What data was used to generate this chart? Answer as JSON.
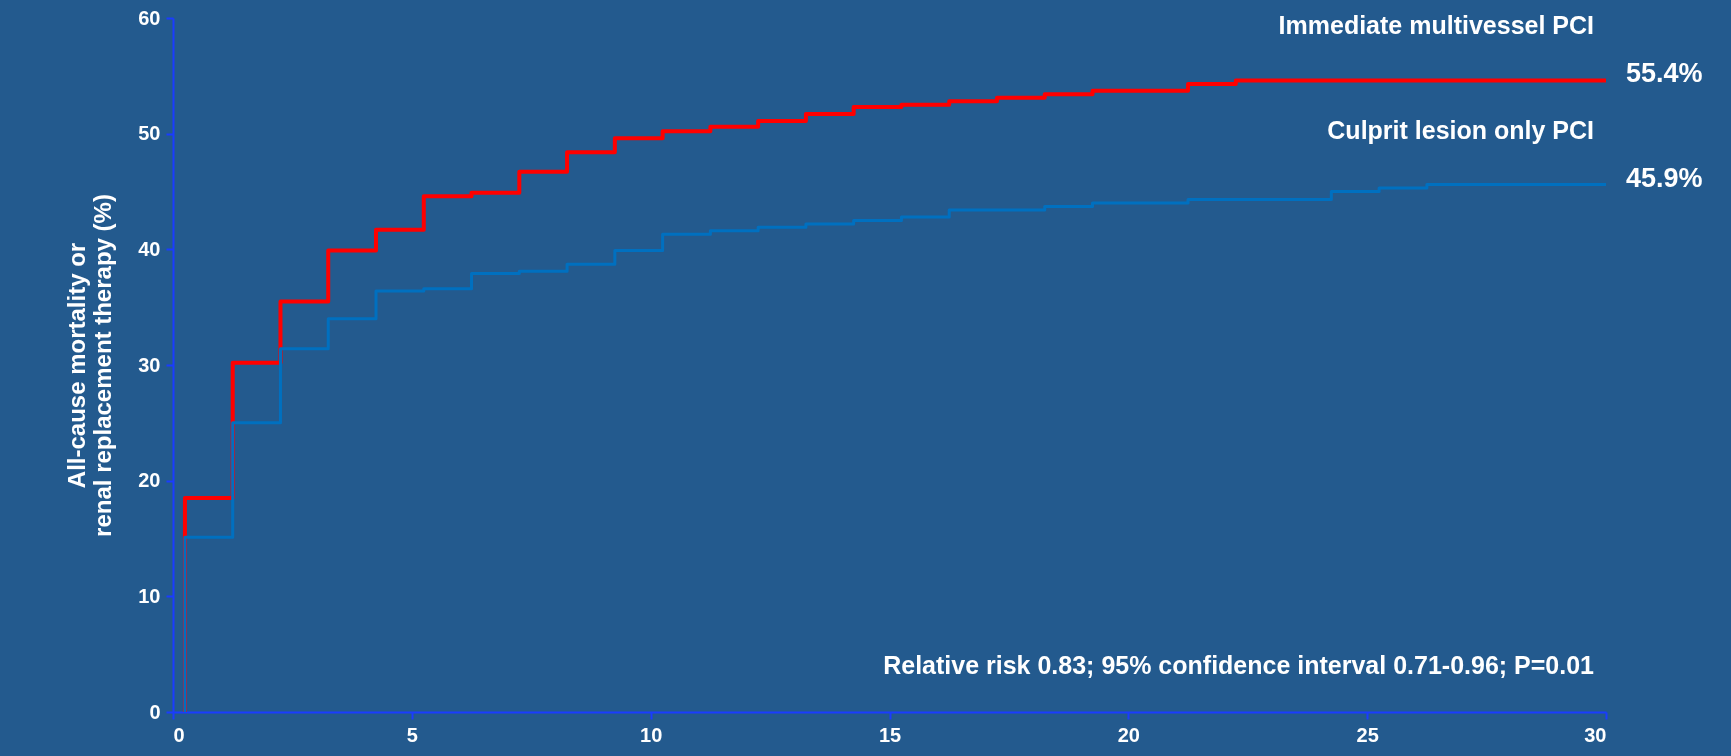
{
  "chart_data": {
    "type": "step",
    "ylabel": "All-cause mortality or\nrenal replacement therapy (%)",
    "xlim": [
      0,
      30
    ],
    "xticks": [
      0,
      5,
      10,
      15,
      20,
      25,
      30
    ],
    "ylim": [
      0,
      60
    ],
    "yticks": [
      0,
      10,
      20,
      30,
      40,
      50,
      60
    ],
    "grid": false,
    "legend": false,
    "marker": "none",
    "line_style": "solid",
    "series": [
      {
        "name": "Immediate multivessel PCI",
        "color": "#ff0000",
        "x": [
          0.25,
          0.25,
          1.25,
          2.25,
          3.25,
          4.25,
          5.25,
          6.25,
          7.25,
          8.25,
          9.25,
          10.25,
          11.25,
          12.25,
          13.25,
          14.25,
          15.25,
          16.25,
          17.25,
          18.25,
          19.25,
          21.25,
          22.25,
          30
        ],
        "values": [
          0,
          18.5,
          30.2,
          35.5,
          39.9,
          41.7,
          44.6,
          44.9,
          46.7,
          48.4,
          49.6,
          50.2,
          50.6,
          51.1,
          51.7,
          52.3,
          52.5,
          52.8,
          53.1,
          53.4,
          53.7,
          54.3,
          54.6,
          54.6
        ]
      },
      {
        "name": "Culprit lesion only PCI",
        "color": "#0070c0",
        "x": [
          0.25,
          0.25,
          1.25,
          2.25,
          3.25,
          4.25,
          5.25,
          6.25,
          7.25,
          8.25,
          9.25,
          10.25,
          11.25,
          12.25,
          13.25,
          14.25,
          15.25,
          16.25,
          18.25,
          19.25,
          21.25,
          24.25,
          25.25,
          26.25,
          30
        ],
        "values": [
          0,
          15.1,
          25.0,
          31.4,
          34.0,
          36.4,
          36.6,
          37.9,
          38.1,
          38.7,
          39.9,
          41.3,
          41.6,
          41.9,
          42.2,
          42.5,
          42.8,
          43.4,
          43.7,
          44.0,
          44.3,
          45.0,
          45.3,
          45.6,
          45.6
        ]
      }
    ],
    "annotations": [
      "55.4%",
      "45.9%",
      "Relative risk 0.83; 95% confidence interval 0.71-0.96; P=0.01"
    ]
  }
}
